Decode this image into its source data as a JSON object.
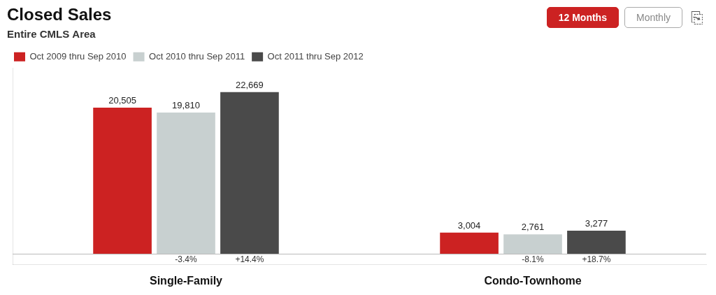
{
  "chart_data": {
    "type": "bar",
    "title": "Closed Sales",
    "subtitle": "Entire CMLS Area",
    "categories": [
      "Single-Family",
      "Condo-Townhome"
    ],
    "series": [
      {
        "name": "Oct 2009 thru Sep 2010",
        "color": "#cc2222",
        "values": [
          20505,
          3004
        ],
        "value_labels": [
          "20,505",
          "3,004"
        ]
      },
      {
        "name": "Oct 2010 thru Sep 2011",
        "color": "#c8d0d0",
        "values": [
          19810,
          2761
        ],
        "value_labels": [
          "19,810",
          "2,761"
        ],
        "changes": [
          -3.4,
          -8.1
        ],
        "change_labels": [
          "-3.4%",
          "-8.1%"
        ]
      },
      {
        "name": "Oct 2011 thru Sep 2012",
        "color": "#4a4a4a",
        "values": [
          22669,
          3277
        ],
        "value_labels": [
          "22,669",
          "3,277"
        ],
        "changes": [
          14.4,
          18.7
        ],
        "change_labels": [
          "+14.4%",
          "+18.7%"
        ]
      }
    ],
    "ylim": [
      -1500,
      26000
    ],
    "grid": false,
    "legend": "top",
    "data_labels": true,
    "tick_labels": "x",
    "annotations": [
      {
        "text": "12 Months",
        "color": "#ffffff",
        "background": "#cc2222"
      },
      {
        "text": "Monthly",
        "color": "#888888",
        "background": "#ffffff"
      },
      {
        "text": "⎘",
        "color": "#555555"
      }
    ]
  }
}
